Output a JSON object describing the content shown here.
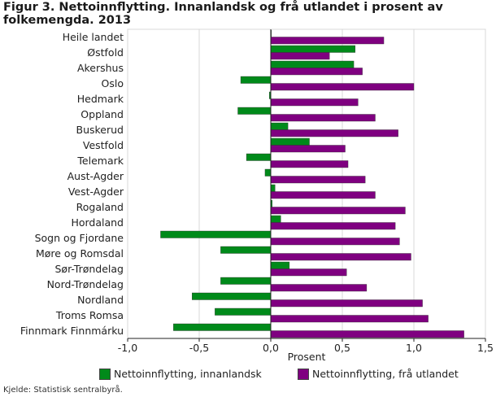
{
  "chart_data": {
    "type": "bar",
    "orientation": "horizontal",
    "title": "Figur 3. Nettoinnflytting. Innanlandsk og frå utlandet i prosent av folkemengda. 2013",
    "xlabel": "Prosent",
    "ylabel": "",
    "xlim": [
      -1.0,
      1.5
    ],
    "xticks": [
      -1.0,
      -0.5,
      0.0,
      0.5,
      1.0,
      1.5
    ],
    "xtick_labels": [
      "-1,0",
      "-0,5",
      "0,0",
      "0,5",
      "1,0",
      "1,5"
    ],
    "grid": "vertical",
    "legend_position": "bottom",
    "categories": [
      "Heile landet",
      "Østfold",
      "Akershus",
      "Oslo",
      "Hedmark",
      "Oppland",
      "Buskerud",
      "Vestfold",
      "Telemark",
      "Aust-Agder",
      "Vest-Agder",
      "Rogaland",
      "Hordaland",
      "Sogn og Fjordane",
      "Møre og Romsdal",
      "Sør-Trøndelag",
      "Nord-Trøndelag",
      "Nordland",
      "Troms Romsa",
      "Finnmark Finnmárku"
    ],
    "series": [
      {
        "name": "Nettoinnflytting, innanlandsk",
        "color": "#008a1a",
        "values": [
          0.0,
          0.59,
          0.58,
          -0.21,
          -0.01,
          -0.23,
          0.12,
          0.27,
          -0.17,
          -0.04,
          0.03,
          0.01,
          0.07,
          -0.77,
          -0.35,
          0.13,
          -0.35,
          -0.55,
          -0.39,
          -0.68
        ]
      },
      {
        "name": "Nettoinnflytting, frå utlandet",
        "color": "#7f0080",
        "values": [
          0.79,
          0.41,
          0.64,
          1.0,
          0.61,
          0.73,
          0.89,
          0.52,
          0.54,
          0.66,
          0.73,
          0.94,
          0.87,
          0.9,
          0.98,
          0.53,
          0.67,
          1.06,
          1.1,
          1.35
        ]
      }
    ]
  },
  "source": "Kjelde: Statistisk sentralbyrå."
}
